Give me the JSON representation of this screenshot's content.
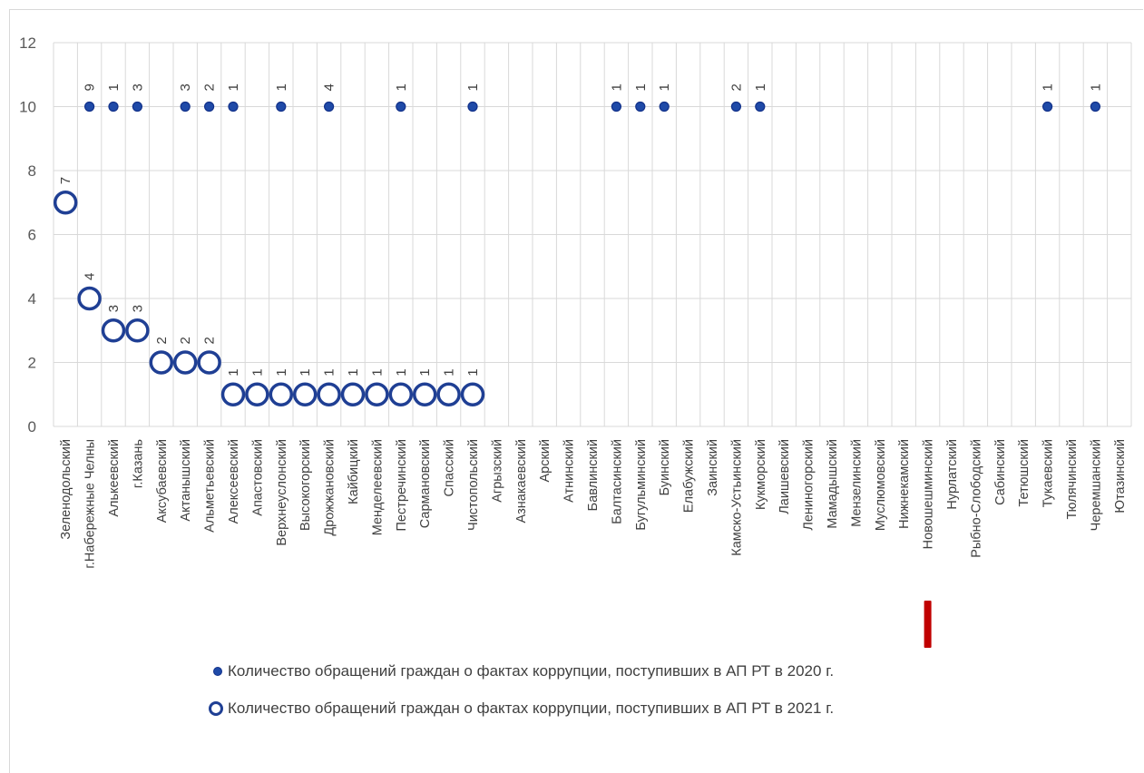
{
  "chart_data": {
    "type": "scatter",
    "ylim": [
      0,
      12
    ],
    "yticks": [
      "0",
      "2",
      "4",
      "6",
      "8",
      "10",
      "12"
    ],
    "grid": true,
    "legend_position": "bottom",
    "categories": [
      "Зеленодольский",
      "г.Набережные Челны",
      "Алькеевский",
      "г.Казань",
      "Аксубаевский",
      "Актанышский",
      "Альметьевский",
      "Алексеевский",
      "Апастовский",
      "Верхнеуслонский",
      "Высокогорский",
      "Дрожжановский",
      "Кайбицкий",
      "Менделеевский",
      "Пестречинский",
      "Сармановский",
      "Спасский",
      "Чистопольский",
      "Агрызский",
      "Азнакаевский",
      "Арский",
      "Атнинский",
      "Бавлинский",
      "Балтасинский",
      "Бугульминский",
      "Буинский",
      "Елабужский",
      "Заинский",
      "Камско-Устьинский",
      "Кукморский",
      "Лаишевский",
      "Лениногорский",
      "Мамадышский",
      "Мензелинский",
      "Муслюмовский",
      "Нижнекамский",
      "Новошешминский",
      "Нурлатский",
      "Рыбно-Слободский",
      "Сабинский",
      "Тетюшский",
      "Тукаевский",
      "Тюлячинский",
      "Черемшанский",
      "Ютазинский"
    ],
    "series": [
      {
        "name": "Количество обращений граждан  о фактах коррупции, поступивших в АП РТ в 2020 г.",
        "marker": "small-filled",
        "y_position": 10,
        "labels": [
          null,
          "9",
          "1",
          "3",
          null,
          "3",
          "2",
          "1",
          null,
          "1",
          null,
          "4",
          null,
          null,
          "1",
          null,
          null,
          "1",
          null,
          null,
          null,
          null,
          null,
          "1",
          "1",
          "1",
          null,
          null,
          "2",
          "1",
          null,
          null,
          null,
          null,
          null,
          null,
          null,
          null,
          null,
          null,
          null,
          "1",
          null,
          "1",
          null
        ]
      },
      {
        "name": "Количество обращений граждан о фактах коррупции, поступивших в АП РТ в 2021 г.",
        "marker": "large-ring",
        "values": [
          7,
          4,
          3,
          3,
          2,
          2,
          2,
          1,
          1,
          1,
          1,
          1,
          1,
          1,
          1,
          1,
          1,
          1,
          null,
          null,
          null,
          null,
          null,
          null,
          null,
          null,
          null,
          null,
          null,
          null,
          null,
          null,
          null,
          null,
          null,
          null,
          null,
          null,
          null,
          null,
          null,
          null,
          null,
          null,
          null
        ],
        "labels": [
          "7",
          "4",
          "3",
          "3",
          "2",
          "2",
          "2",
          "1",
          "1",
          "1",
          "1",
          "1",
          "1",
          "1",
          "1",
          "1",
          "1",
          "1",
          null,
          null,
          null,
          null,
          null,
          null,
          null,
          null,
          null,
          null,
          null,
          null,
          null,
          null,
          null,
          null,
          null,
          null,
          null,
          null,
          null,
          null,
          null,
          null,
          null,
          null,
          null
        ]
      }
    ],
    "highlight_category": "Новошешминский",
    "highlight_color": "#c00000"
  },
  "colors": {
    "marker_fill": "#1f4aa8",
    "ring_stroke": "#1f3f94",
    "grid": "#d9d9d9"
  }
}
